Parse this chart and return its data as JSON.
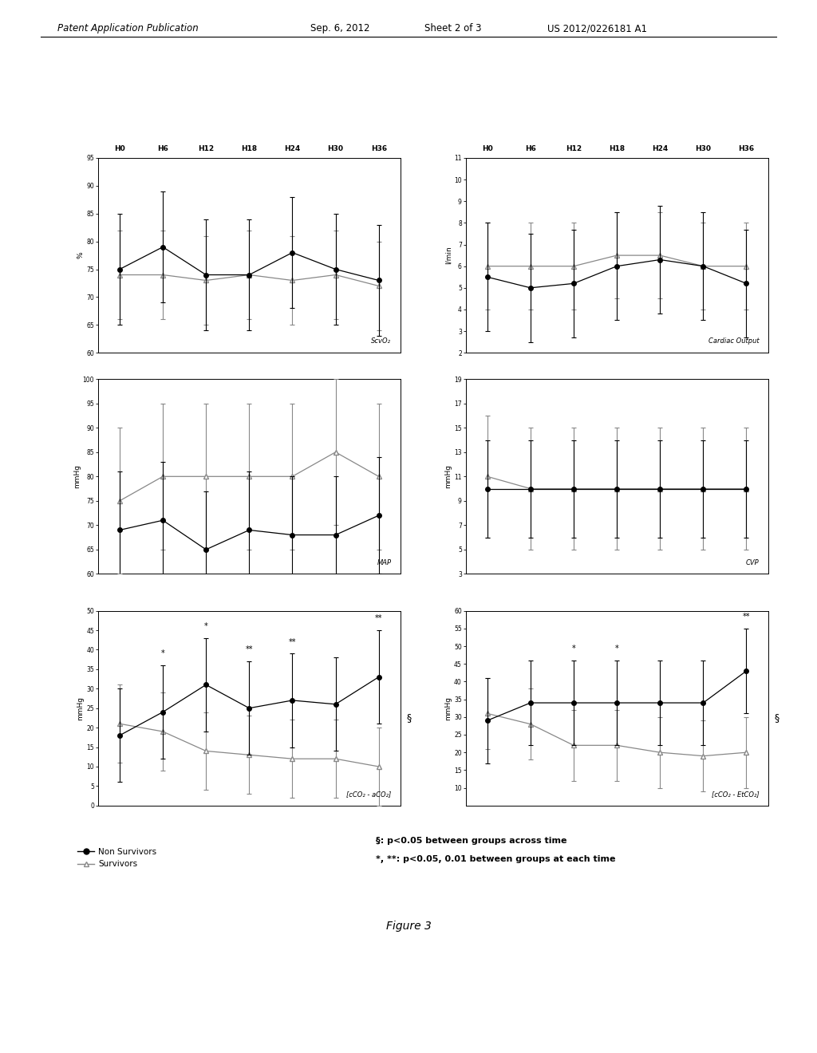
{
  "timepoints": [
    0,
    1,
    2,
    3,
    4,
    5,
    6
  ],
  "xlabels": [
    "H0",
    "H6",
    "H12",
    "H18",
    "H24",
    "H30",
    "H36"
  ],
  "scvo2": {
    "ylabel": "%",
    "ylim": [
      60,
      95
    ],
    "yticks": [
      60,
      65,
      70,
      75,
      80,
      85,
      90,
      95
    ],
    "label": "ScvO₂",
    "ns_mean": [
      75,
      79,
      74,
      74,
      78,
      75,
      73
    ],
    "ns_err": [
      10,
      10,
      10,
      10,
      10,
      10,
      10
    ],
    "s_mean": [
      74,
      74,
      73,
      74,
      73,
      74,
      72
    ],
    "s_err": [
      8,
      8,
      8,
      8,
      8,
      8,
      8
    ],
    "sig_ns": [
      "",
      "",
      "",
      "",
      "",
      "",
      ""
    ],
    "show_sig": false
  },
  "co": {
    "ylabel": "l/min",
    "ylim": [
      2,
      11
    ],
    "yticks": [
      2,
      3,
      4,
      5,
      6,
      7,
      8,
      9,
      10,
      11
    ],
    "label": "Cardiac Output",
    "ns_mean": [
      5.5,
      5.0,
      5.2,
      6.0,
      6.3,
      6.0,
      5.2
    ],
    "ns_err": [
      2.5,
      2.5,
      2.5,
      2.5,
      2.5,
      2.5,
      2.5
    ],
    "s_mean": [
      6.0,
      6.0,
      6.0,
      6.5,
      6.5,
      6.0,
      6.0
    ],
    "s_err": [
      2.0,
      2.0,
      2.0,
      2.0,
      2.0,
      2.0,
      2.0
    ],
    "sig_ns": [
      "",
      "",
      "",
      "",
      "",
      "",
      ""
    ],
    "show_sig": false
  },
  "map": {
    "ylabel": "mmHg",
    "ylim": [
      60,
      100
    ],
    "yticks": [
      60,
      65,
      70,
      75,
      80,
      85,
      90,
      95,
      100
    ],
    "label": "MAP",
    "ns_mean": [
      69,
      71,
      65,
      69,
      68,
      68,
      72
    ],
    "ns_err": [
      12,
      12,
      12,
      12,
      12,
      12,
      12
    ],
    "s_mean": [
      75,
      80,
      80,
      80,
      80,
      85,
      80
    ],
    "s_err": [
      15,
      15,
      15,
      15,
      15,
      15,
      15
    ],
    "sig_ns": [
      "",
      "",
      "",
      "",
      "",
      "",
      ""
    ],
    "show_sig": false
  },
  "cvp": {
    "ylabel": "mmHg",
    "ylim": [
      3,
      19
    ],
    "yticks": [
      3,
      5,
      7,
      9,
      11,
      13,
      15,
      17,
      19
    ],
    "label": "CVP",
    "ns_mean": [
      10,
      10,
      10,
      10,
      10,
      10,
      10
    ],
    "ns_err": [
      4,
      4,
      4,
      4,
      4,
      4,
      4
    ],
    "s_mean": [
      11,
      10,
      10,
      10,
      10,
      10,
      10
    ],
    "s_err": [
      5,
      5,
      5,
      5,
      5,
      5,
      5
    ],
    "sig_ns": [
      "",
      "",
      "",
      "",
      "",
      "",
      ""
    ],
    "show_sig": false
  },
  "cco2_aco2": {
    "ylabel": "mmHg",
    "ylim": [
      0,
      50
    ],
    "yticks": [
      0,
      5,
      10,
      15,
      20,
      25,
      30,
      35,
      40,
      45,
      50
    ],
    "label": "[cCO₂ - aCO₂]",
    "ns_mean": [
      18,
      24,
      31,
      25,
      27,
      26,
      33
    ],
    "ns_err": [
      12,
      12,
      12,
      12,
      12,
      12,
      12
    ],
    "s_mean": [
      21,
      19,
      14,
      13,
      12,
      12,
      10
    ],
    "s_err": [
      10,
      10,
      10,
      10,
      10,
      10,
      10
    ],
    "sig_ns": [
      "",
      "*",
      "*",
      "**",
      "**",
      "",
      "**"
    ],
    "show_sig": true,
    "bracket_label": "§"
  },
  "cco2_etco2": {
    "ylabel": "mmHg",
    "ylim": [
      5,
      60
    ],
    "yticks": [
      10,
      15,
      20,
      25,
      30,
      35,
      40,
      45,
      50,
      55,
      60
    ],
    "label": "[cCO₂ - EtCO₂]",
    "ns_mean": [
      29,
      34,
      34,
      34,
      34,
      34,
      43
    ],
    "ns_err": [
      12,
      12,
      12,
      12,
      12,
      12,
      12
    ],
    "s_mean": [
      31,
      28,
      22,
      22,
      20,
      19,
      20
    ],
    "s_err": [
      10,
      10,
      10,
      10,
      10,
      10,
      10
    ],
    "sig_ns": [
      "",
      "",
      "*",
      "*",
      "",
      "",
      "**"
    ],
    "show_sig": true,
    "bracket_label": "§"
  },
  "ns_color": "#000000",
  "s_color": "#888888",
  "bg_color": "#ffffff",
  "figure_label": "Figure 3",
  "legend_ns": "Non Survivors",
  "legend_s": "Survivors",
  "stat_text1": "§: p<0.05 between groups across time",
  "stat_text2": "*, **: p<0.05, 0.01 between groups at each time"
}
